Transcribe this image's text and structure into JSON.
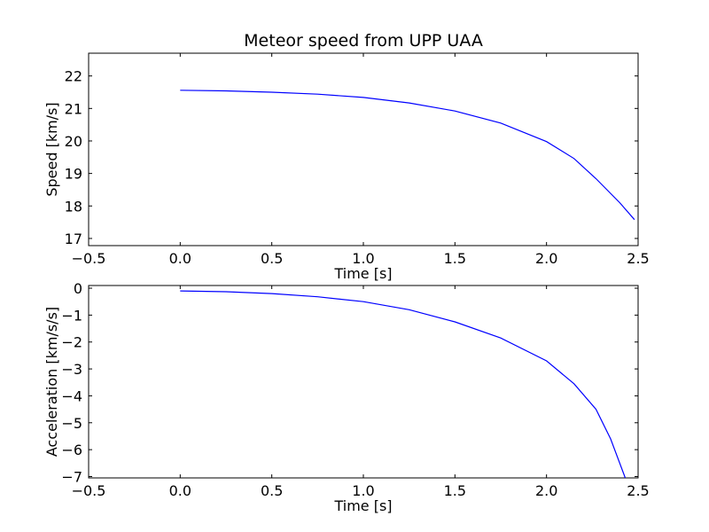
{
  "chart_data": [
    {
      "type": "line",
      "title": "Meteor speed from  UPP UAA",
      "xlabel": "Time [s]",
      "ylabel": "Speed [km/s]",
      "xlim": [
        -0.5,
        2.5
      ],
      "ylim": [
        16.78,
        22.7
      ],
      "xticks": [
        -0.5,
        0.0,
        0.5,
        1.0,
        1.5,
        2.0,
        2.5
      ],
      "xtick_labels": [
        "−0.5",
        "0.0",
        "0.5",
        "1.0",
        "1.5",
        "2.0",
        "2.5"
      ],
      "yticks": [
        17,
        18,
        19,
        20,
        21,
        22
      ],
      "ytick_labels": [
        "17",
        "18",
        "19",
        "20",
        "21",
        "22"
      ],
      "grid": false,
      "line_color": "#0000ff",
      "series": [
        {
          "x": [
            0.0,
            0.25,
            0.5,
            0.75,
            1.0,
            1.25,
            1.5,
            1.75,
            2.0,
            2.15,
            2.27,
            2.4,
            2.48
          ],
          "y": [
            21.56,
            21.54,
            21.5,
            21.44,
            21.34,
            21.17,
            20.92,
            20.55,
            19.98,
            19.46,
            18.84,
            18.1,
            17.58
          ]
        }
      ]
    },
    {
      "type": "line",
      "title": "",
      "xlabel": "Time [s]",
      "ylabel": "Acceleration [km/s/s]",
      "xlim": [
        -0.5,
        2.5
      ],
      "ylim": [
        -7.05,
        0.1
      ],
      "xticks": [
        -0.5,
        0.0,
        0.5,
        1.0,
        1.5,
        2.0,
        2.5
      ],
      "xtick_labels": [
        "−0.5",
        "0.0",
        "0.5",
        "1.0",
        "1.5",
        "2.0",
        "2.5"
      ],
      "yticks": [
        0,
        -1,
        -2,
        -3,
        -4,
        -5,
        -6,
        -7
      ],
      "ytick_labels": [
        "0",
        "−1",
        "−2",
        "−3",
        "−4",
        "−5",
        "−6",
        "−7"
      ],
      "grid": false,
      "line_color": "#0000ff",
      "series": [
        {
          "x": [
            0.0,
            0.25,
            0.5,
            0.75,
            1.0,
            1.25,
            1.5,
            1.75,
            2.0,
            2.15,
            2.27,
            2.35,
            2.43
          ],
          "y": [
            -0.1,
            -0.13,
            -0.2,
            -0.32,
            -0.5,
            -0.8,
            -1.25,
            -1.85,
            -2.7,
            -3.55,
            -4.5,
            -5.6,
            -7.05
          ]
        }
      ]
    }
  ]
}
